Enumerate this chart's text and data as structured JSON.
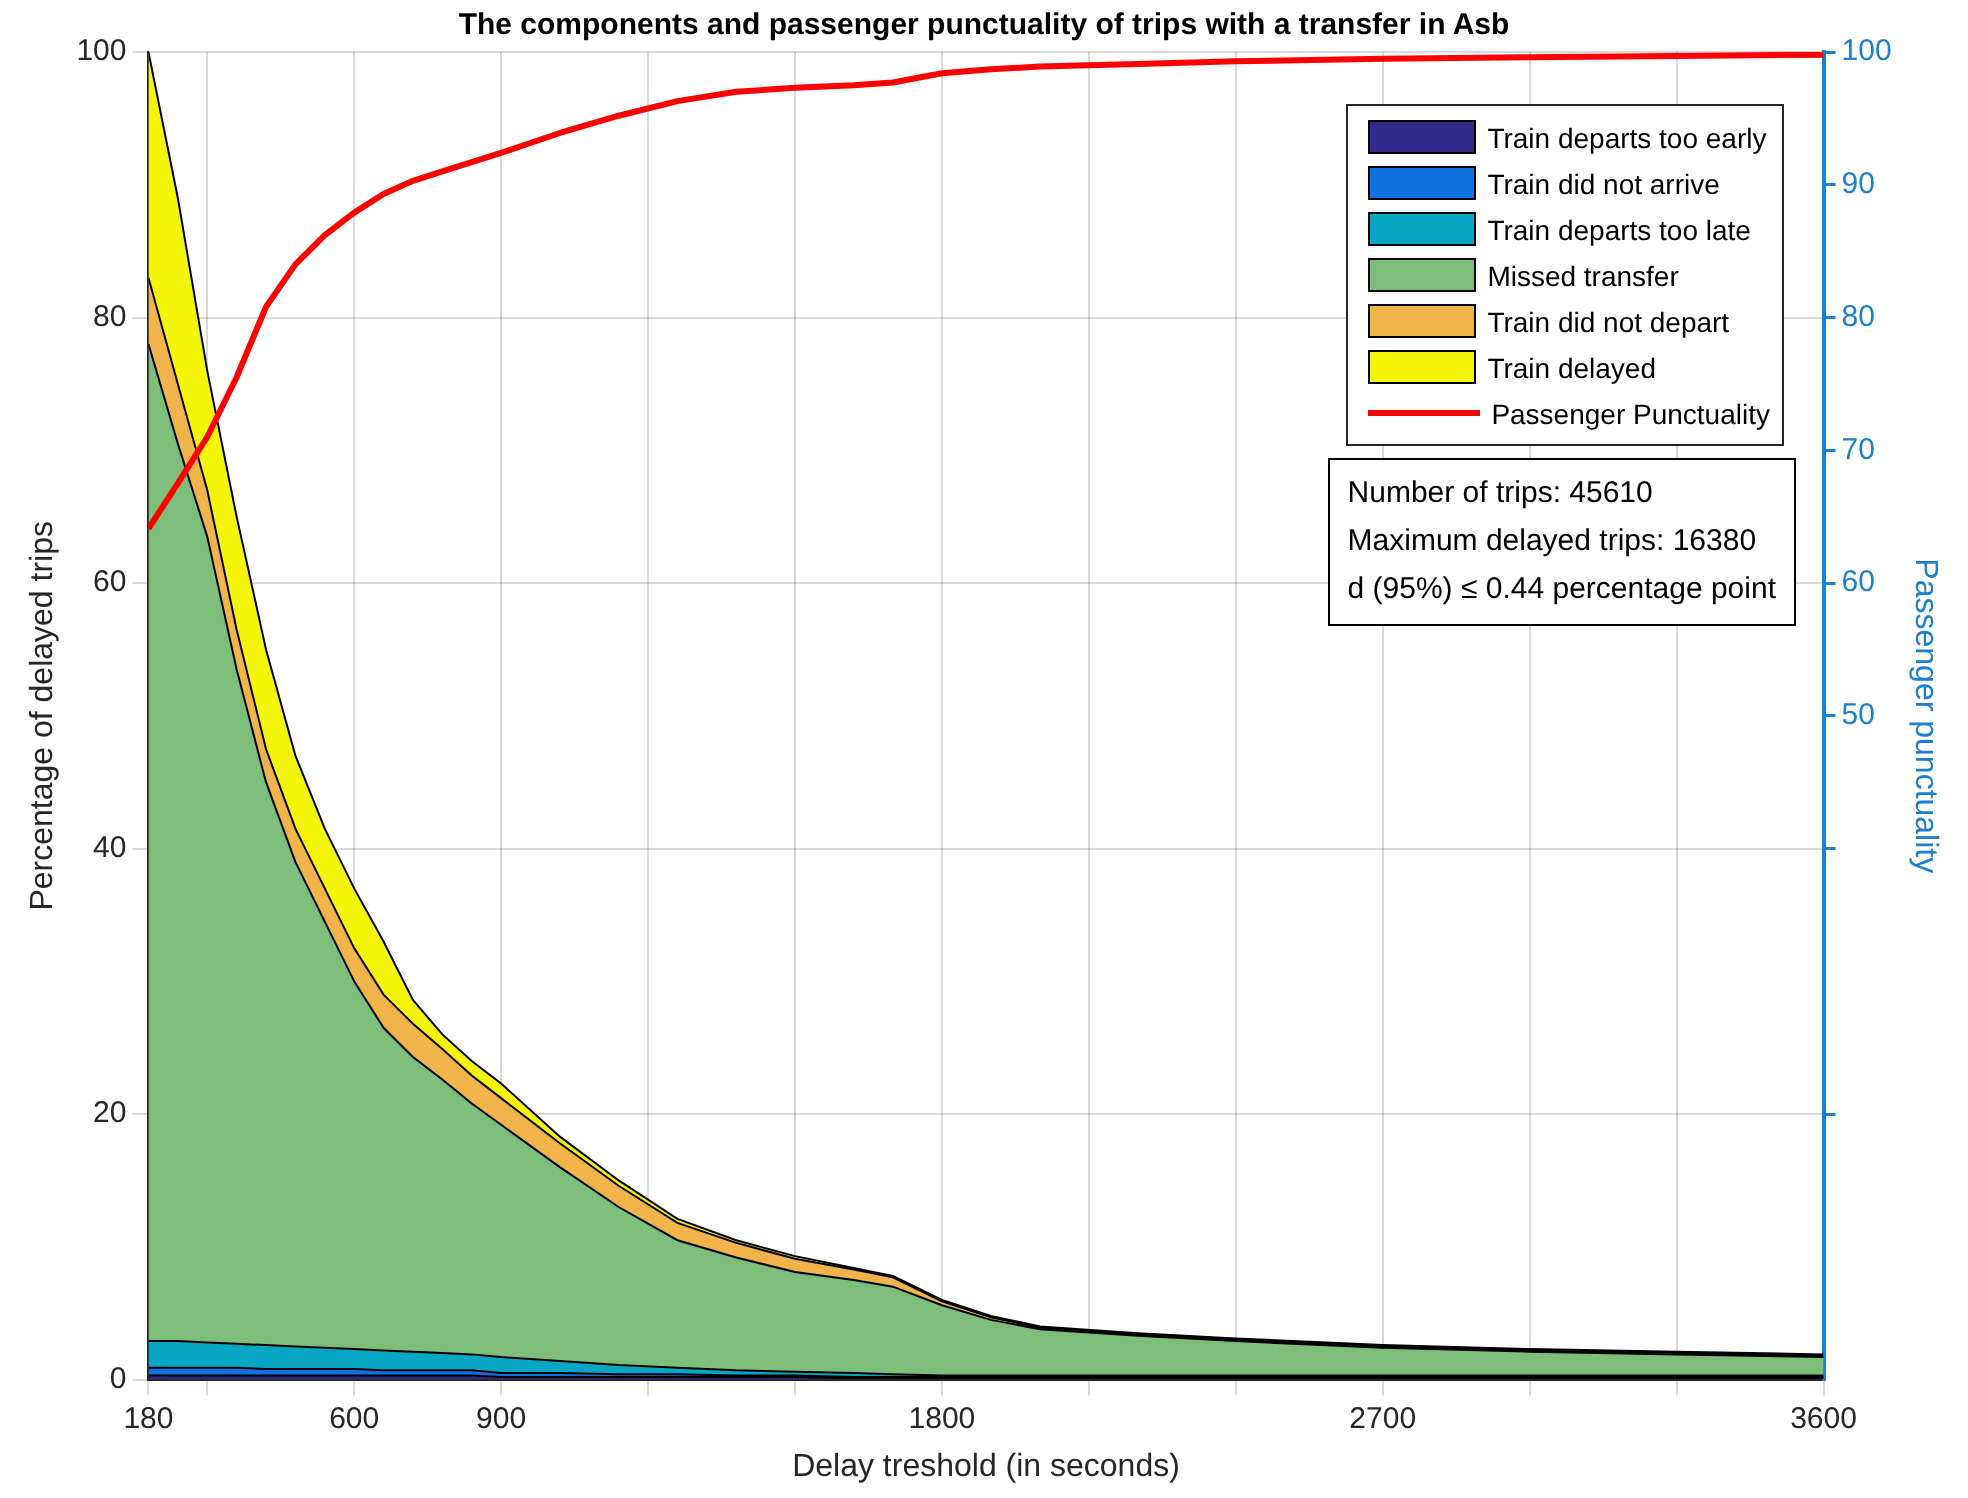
{
  "chart_data": {
    "type": "area",
    "stacked": true,
    "title": "The components and passenger punctuality of trips with a transfer in Asb",
    "xlabel": "Delay treshold (in seconds)",
    "ylabel": "Percentage of delayed trips",
    "y2label": "Passenger punctuality",
    "x": [
      180,
      240,
      300,
      360,
      420,
      480,
      540,
      600,
      660,
      720,
      780,
      840,
      900,
      1020,
      1140,
      1260,
      1380,
      1500,
      1620,
      1700,
      1800,
      1900,
      2000,
      2200,
      2400,
      2700,
      3000,
      3300,
      3600
    ],
    "series": [
      {
        "name": "Train departs too early",
        "color": "#33298a",
        "values": [
          0.3,
          0.3,
          0.3,
          0.3,
          0.3,
          0.3,
          0.3,
          0.3,
          0.3,
          0.3,
          0.3,
          0.3,
          0.2,
          0.2,
          0.2,
          0.2,
          0.2,
          0.2,
          0.1,
          0.1,
          0.1,
          0.1,
          0.1,
          0.1,
          0.1,
          0.1,
          0.1,
          0.1,
          0.1
        ]
      },
      {
        "name": "Train did not arrive",
        "color": "#1071e0",
        "values": [
          0.6,
          0.6,
          0.6,
          0.6,
          0.5,
          0.5,
          0.5,
          0.5,
          0.4,
          0.4,
          0.4,
          0.4,
          0.3,
          0.3,
          0.2,
          0.2,
          0.1,
          0.1,
          0.1,
          0.1,
          0.1,
          0.1,
          0.1,
          0.1,
          0.1,
          0.1,
          0.1,
          0.1,
          0.1
        ]
      },
      {
        "name": "Train departs too late",
        "color": "#07a6c4",
        "values": [
          2.0,
          2.0,
          1.9,
          1.8,
          1.8,
          1.7,
          1.6,
          1.5,
          1.5,
          1.4,
          1.3,
          1.2,
          1.2,
          0.9,
          0.7,
          0.5,
          0.4,
          0.3,
          0.3,
          0.2,
          0.1,
          0.1,
          0.1,
          0.1,
          0.1,
          0.1,
          0.1,
          0.1,
          0.1
        ]
      },
      {
        "name": "Missed transfer",
        "color": "#7dbf7a",
        "values": [
          75.1,
          67.6,
          60.7,
          50.8,
          42.4,
          36.5,
          32.1,
          27.7,
          24.3,
          22.2,
          20.6,
          18.9,
          17.5,
          14.6,
          11.9,
          9.6,
          8.5,
          7.5,
          7.0,
          6.6,
          5.3,
          4.2,
          3.5,
          3.0,
          2.6,
          2.1,
          1.8,
          1.6,
          1.4
        ]
      },
      {
        "name": "Train did not depart",
        "color": "#f0b44a",
        "values": [
          5,
          4.5,
          3.5,
          3.0,
          2.5,
          2.5,
          2.5,
          2.5,
          2.5,
          2.5,
          2.3,
          2.1,
          2.0,
          1.8,
          1.6,
          1.3,
          1.1,
          1.0,
          0.8,
          0.7,
          0.3,
          0.2,
          0.1,
          0.1,
          0.1,
          0.1,
          0.1,
          0.1,
          0.1
        ]
      },
      {
        "name": "Train delayed",
        "color": "#f5f50a",
        "values": [
          17,
          14,
          9,
          8.5,
          7.5,
          5.5,
          4.5,
          4.5,
          4,
          1.8,
          1.1,
          1.1,
          1.1,
          0.5,
          0.4,
          0.3,
          0.2,
          0.2,
          0.1,
          0.1,
          0.1,
          0.1,
          0.1,
          0.1,
          0.1,
          0.1,
          0.1,
          0.1,
          0.1
        ]
      },
      {
        "name": "Passenger Punctuality",
        "type": "line",
        "axis": "y2",
        "color": "#ff0000",
        "values": [
          64.1,
          67.5,
          71,
          75.5,
          80.8,
          84,
          86.2,
          87.9,
          89.3,
          90.3,
          91.0,
          91.7,
          92.4,
          93.9,
          95.2,
          96.3,
          97.0,
          97.3,
          97.5,
          97.7,
          98.4,
          98.7,
          98.9,
          99.1,
          99.3,
          99.5,
          99.6,
          99.7,
          99.8
        ]
      }
    ],
    "xlim": [
      180,
      3600
    ],
    "xticks": [
      180,
      {
        "value": 300,
        "label": null
      },
      600,
      900,
      {
        "value": 1200,
        "label": null
      },
      {
        "value": 1500,
        "label": null
      },
      1800,
      {
        "value": 2100,
        "label": null
      },
      {
        "value": 2400,
        "label": null
      },
      2700,
      {
        "value": 3000,
        "label": null
      },
      {
        "value": 3300,
        "label": null
      },
      3600
    ],
    "ylim": [
      0,
      100
    ],
    "yticks": [
      0,
      20,
      40,
      60,
      80,
      100
    ],
    "y2lim": [
      0,
      100
    ],
    "y2ticks": [
      {
        "value": 20,
        "label": null
      },
      {
        "value": 40,
        "label": null
      },
      50,
      60,
      70,
      80,
      90,
      100
    ],
    "grid": true,
    "legend": "top right",
    "annotations": [
      "Number of trips: 45610",
      "Maximum delayed trips: 16380",
      "d (95%) ≤ 0.44 percentage point"
    ]
  }
}
